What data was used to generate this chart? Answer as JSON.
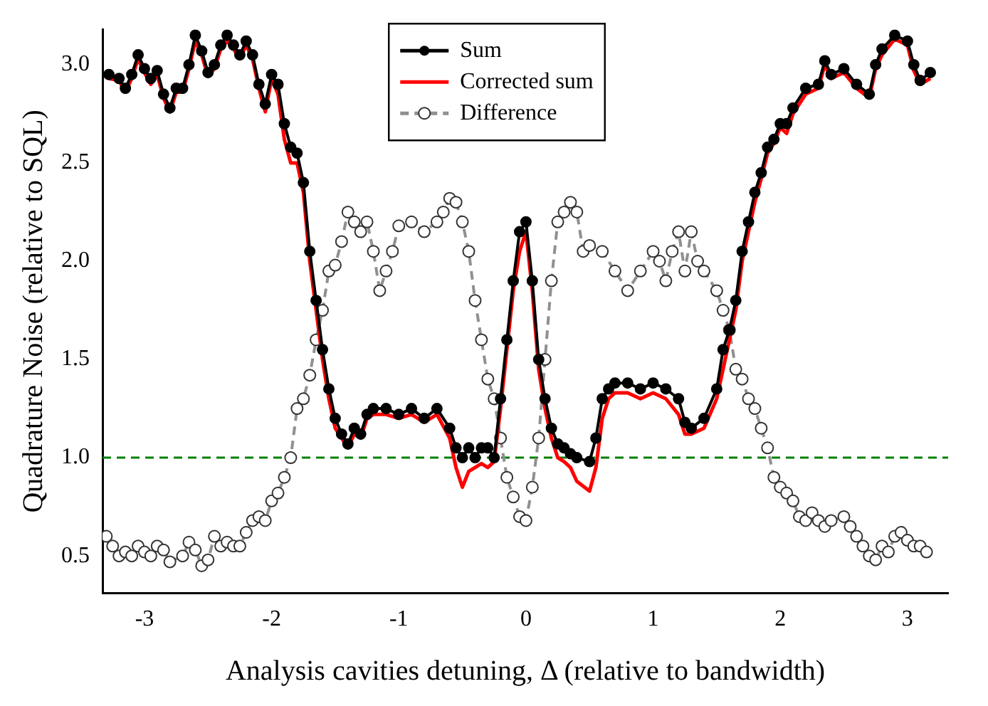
{
  "chart_data": {
    "type": "line",
    "xlabel": "Analysis cavities detuning, Δ (relative to bandwidth)",
    "ylabel": "Quadrature Noise (relative to SQL)",
    "xlim": [
      -3.33,
      3.32
    ],
    "xticks": [
      -3,
      -2,
      -1,
      0,
      1,
      2,
      3
    ],
    "ylim": [
      0.31,
      3.18
    ],
    "yticks": [
      {
        "value": 0.5,
        "label": "0.5"
      },
      {
        "value": 1,
        "label": "1.0"
      },
      {
        "value": 1.5,
        "label": "1.5"
      },
      {
        "value": 2,
        "label": "2.0"
      },
      {
        "value": 2.5,
        "label": "2.5"
      },
      {
        "value": 3,
        "label": "3.0"
      }
    ],
    "grid": false,
    "legend": "top",
    "ref_lines": [
      {
        "axis": "y",
        "value": 1,
        "color": "#008000",
        "line_style": "dashed"
      }
    ],
    "series": [
      {
        "name": "Sum",
        "color": "#000000",
        "marker": "circle",
        "line_style": "solid",
        "x": [
          -3.28,
          -3.2,
          -3.15,
          -3.1,
          -3.05,
          -3.0,
          -2.95,
          -2.9,
          -2.85,
          -2.8,
          -2.75,
          -2.7,
          -2.65,
          -2.6,
          -2.55,
          -2.5,
          -2.45,
          -2.4,
          -2.35,
          -2.3,
          -2.25,
          -2.2,
          -2.15,
          -2.1,
          -2.05,
          -2.0,
          -1.95,
          -1.9,
          -1.85,
          -1.8,
          -1.75,
          -1.7,
          -1.65,
          -1.6,
          -1.55,
          -1.5,
          -1.45,
          -1.4,
          -1.35,
          -1.3,
          -1.25,
          -1.2,
          -1.1,
          -1.0,
          -0.9,
          -0.8,
          -0.7,
          -0.6,
          -0.55,
          -0.5,
          -0.45,
          -0.4,
          -0.35,
          -0.3,
          -0.25,
          -0.2,
          -0.15,
          -0.1,
          -0.05,
          0.0,
          0.05,
          0.1,
          0.15,
          0.2,
          0.25,
          0.3,
          0.35,
          0.4,
          0.5,
          0.55,
          0.6,
          0.65,
          0.7,
          0.8,
          0.9,
          1.0,
          1.1,
          1.2,
          1.25,
          1.3,
          1.4,
          1.5,
          1.55,
          1.6,
          1.65,
          1.7,
          1.75,
          1.8,
          1.85,
          1.9,
          1.95,
          2.0,
          2.05,
          2.1,
          2.2,
          2.3,
          2.35,
          2.4,
          2.5,
          2.6,
          2.7,
          2.75,
          2.8,
          2.9,
          3.0,
          3.05,
          3.1,
          3.18
        ],
        "values": [
          2.95,
          2.93,
          2.88,
          2.95,
          3.05,
          2.98,
          2.93,
          2.97,
          2.85,
          2.78,
          2.88,
          2.88,
          3.0,
          3.15,
          3.07,
          2.96,
          3.0,
          3.1,
          3.15,
          3.1,
          3.05,
          3.12,
          3.05,
          2.9,
          2.8,
          2.95,
          2.9,
          2.7,
          2.58,
          2.55,
          2.4,
          2.05,
          1.8,
          1.55,
          1.35,
          1.2,
          1.12,
          1.07,
          1.15,
          1.12,
          1.22,
          1.25,
          1.25,
          1.22,
          1.25,
          1.2,
          1.25,
          1.15,
          1.05,
          1.0,
          1.05,
          1.0,
          1.05,
          1.05,
          1.0,
          1.3,
          1.6,
          1.9,
          2.15,
          2.2,
          1.9,
          1.5,
          1.3,
          1.15,
          1.07,
          1.05,
          1.02,
          1.0,
          0.98,
          1.1,
          1.3,
          1.35,
          1.38,
          1.38,
          1.35,
          1.38,
          1.35,
          1.3,
          1.18,
          1.15,
          1.2,
          1.35,
          1.55,
          1.65,
          1.8,
          2.05,
          2.2,
          2.35,
          2.45,
          2.58,
          2.62,
          2.7,
          2.7,
          2.78,
          2.88,
          2.9,
          3.02,
          2.95,
          2.98,
          2.9,
          2.85,
          3.0,
          3.08,
          3.15,
          3.12,
          3.0,
          2.92,
          2.96
        ]
      },
      {
        "name": "Corrected sum",
        "color": "#ff0000",
        "marker": "none",
        "line_style": "solid",
        "x": [
          -3.28,
          -3.2,
          -3.15,
          -3.1,
          -3.05,
          -3.0,
          -2.95,
          -2.9,
          -2.85,
          -2.8,
          -2.75,
          -2.7,
          -2.65,
          -2.6,
          -2.55,
          -2.5,
          -2.45,
          -2.4,
          -2.35,
          -2.3,
          -2.25,
          -2.2,
          -2.15,
          -2.1,
          -2.05,
          -2.0,
          -1.95,
          -1.9,
          -1.85,
          -1.8,
          -1.75,
          -1.7,
          -1.65,
          -1.6,
          -1.55,
          -1.5,
          -1.45,
          -1.4,
          -1.35,
          -1.3,
          -1.25,
          -1.2,
          -1.1,
          -1.0,
          -0.9,
          -0.8,
          -0.7,
          -0.6,
          -0.55,
          -0.5,
          -0.45,
          -0.4,
          -0.35,
          -0.3,
          -0.25,
          -0.2,
          -0.15,
          -0.1,
          -0.05,
          0.0,
          0.05,
          0.1,
          0.15,
          0.2,
          0.25,
          0.3,
          0.35,
          0.4,
          0.5,
          0.55,
          0.6,
          0.65,
          0.7,
          0.8,
          0.9,
          1.0,
          1.1,
          1.2,
          1.25,
          1.3,
          1.4,
          1.5,
          1.55,
          1.6,
          1.65,
          1.7,
          1.75,
          1.8,
          1.85,
          1.9,
          1.95,
          2.0,
          2.05,
          2.1,
          2.2,
          2.3,
          2.35,
          2.4,
          2.5,
          2.6,
          2.7,
          2.75,
          2.8,
          2.9,
          3.0,
          3.05,
          3.1,
          3.18
        ],
        "values": [
          2.93,
          2.92,
          2.86,
          2.93,
          3.03,
          2.96,
          2.9,
          2.95,
          2.83,
          2.76,
          2.86,
          2.86,
          2.98,
          3.12,
          3.05,
          2.94,
          2.98,
          3.08,
          3.12,
          3.08,
          3.03,
          3.1,
          3.03,
          2.88,
          2.76,
          2.93,
          2.85,
          2.62,
          2.5,
          2.5,
          2.35,
          2.0,
          1.75,
          1.5,
          1.3,
          1.15,
          1.1,
          1.05,
          1.12,
          1.1,
          1.2,
          1.22,
          1.22,
          1.2,
          1.22,
          1.18,
          1.22,
          1.1,
          0.95,
          0.85,
          0.93,
          0.95,
          0.97,
          0.95,
          0.98,
          1.25,
          1.55,
          1.85,
          2.05,
          2.15,
          1.85,
          1.45,
          1.25,
          1.1,
          1.0,
          0.98,
          0.95,
          0.88,
          0.83,
          0.95,
          1.2,
          1.3,
          1.33,
          1.33,
          1.3,
          1.33,
          1.3,
          1.22,
          1.12,
          1.12,
          1.15,
          1.3,
          1.45,
          1.6,
          1.75,
          2.0,
          2.15,
          2.3,
          2.42,
          2.55,
          2.6,
          2.68,
          2.65,
          2.75,
          2.85,
          2.88,
          3.0,
          2.93,
          2.96,
          2.88,
          2.83,
          2.98,
          3.05,
          3.13,
          3.1,
          2.97,
          2.9,
          2.93
        ]
      },
      {
        "name": "Difference",
        "color": "#909090",
        "marker": "circle_open",
        "line_style": "dashed",
        "x": [
          -3.3,
          -3.25,
          -3.2,
          -3.15,
          -3.1,
          -3.05,
          -3.0,
          -2.95,
          -2.9,
          -2.85,
          -2.8,
          -2.7,
          -2.65,
          -2.6,
          -2.55,
          -2.5,
          -2.45,
          -2.4,
          -2.35,
          -2.3,
          -2.25,
          -2.2,
          -2.15,
          -2.1,
          -2.05,
          -2.0,
          -1.95,
          -1.9,
          -1.85,
          -1.8,
          -1.75,
          -1.7,
          -1.65,
          -1.6,
          -1.55,
          -1.5,
          -1.45,
          -1.4,
          -1.35,
          -1.3,
          -1.25,
          -1.2,
          -1.15,
          -1.1,
          -1.05,
          -1.0,
          -0.9,
          -0.8,
          -0.7,
          -0.65,
          -0.6,
          -0.55,
          -0.5,
          -0.45,
          -0.4,
          -0.35,
          -0.3,
          -0.25,
          -0.2,
          -0.15,
          -0.1,
          -0.05,
          0.0,
          0.05,
          0.1,
          0.15,
          0.2,
          0.25,
          0.3,
          0.35,
          0.4,
          0.45,
          0.5,
          0.6,
          0.7,
          0.8,
          0.9,
          1.0,
          1.05,
          1.1,
          1.15,
          1.2,
          1.25,
          1.3,
          1.35,
          1.4,
          1.5,
          1.55,
          1.6,
          1.65,
          1.7,
          1.75,
          1.8,
          1.85,
          1.9,
          1.95,
          2.0,
          2.05,
          2.1,
          2.15,
          2.2,
          2.25,
          2.3,
          2.35,
          2.4,
          2.5,
          2.55,
          2.6,
          2.65,
          2.7,
          2.75,
          2.8,
          2.85,
          2.9,
          2.95,
          3.0,
          3.05,
          3.1,
          3.15
        ],
        "values": [
          0.6,
          0.55,
          0.5,
          0.52,
          0.5,
          0.55,
          0.52,
          0.5,
          0.55,
          0.53,
          0.47,
          0.5,
          0.57,
          0.53,
          0.45,
          0.48,
          0.6,
          0.55,
          0.57,
          0.55,
          0.55,
          0.62,
          0.68,
          0.7,
          0.68,
          0.78,
          0.82,
          0.9,
          1.0,
          1.25,
          1.3,
          1.42,
          1.6,
          1.75,
          1.95,
          1.98,
          2.1,
          2.25,
          2.2,
          2.15,
          2.2,
          2.05,
          1.85,
          1.95,
          2.05,
          2.18,
          2.2,
          2.15,
          2.2,
          2.25,
          2.32,
          2.3,
          2.2,
          2.05,
          1.8,
          1.6,
          1.4,
          1.3,
          1.1,
          0.9,
          0.8,
          0.7,
          0.68,
          0.85,
          1.1,
          1.5,
          1.9,
          2.2,
          2.25,
          2.3,
          2.25,
          2.05,
          2.08,
          2.05,
          1.95,
          1.85,
          1.95,
          2.05,
          2.0,
          1.9,
          2.05,
          2.15,
          1.95,
          2.15,
          2.0,
          1.95,
          1.85,
          1.75,
          1.65,
          1.45,
          1.4,
          1.3,
          1.25,
          1.15,
          1.05,
          0.9,
          0.85,
          0.82,
          0.78,
          0.7,
          0.68,
          0.72,
          0.68,
          0.65,
          0.68,
          0.7,
          0.65,
          0.6,
          0.55,
          0.5,
          0.48,
          0.55,
          0.52,
          0.6,
          0.62,
          0.58,
          0.55,
          0.55,
          0.52
        ]
      }
    ]
  }
}
